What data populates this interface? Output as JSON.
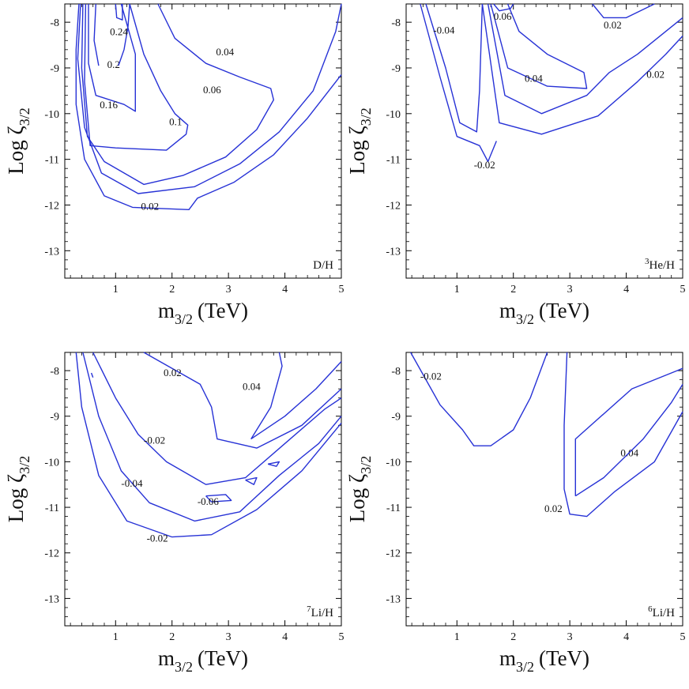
{
  "chart_data": [
    {
      "type": "contour",
      "panel_label": "D/H",
      "xlabel": "m",
      "xlabel_sub": "3/2",
      "xlabel_unit": "(TeV)",
      "ylabel": "Log ζ",
      "ylabel_sub": "3/2",
      "xlim": [
        0.1,
        5
      ],
      "ylim": [
        -13.6,
        -7.6
      ],
      "x_ticks": [
        1,
        2,
        3,
        4,
        5
      ],
      "y_ticks": [
        -8,
        -9,
        -10,
        -11,
        -12,
        -13
      ],
      "contours": [
        {
          "level": "0.02",
          "label_at": [
            1.45,
            -12.1
          ],
          "points": [
            [
              0.35,
              -7.6
            ],
            [
              0.3,
              -8.6
            ],
            [
              0.3,
              -9.8
            ],
            [
              0.45,
              -11
            ],
            [
              0.8,
              -11.8
            ],
            [
              1.3,
              -12.05
            ],
            [
              2.3,
              -12.1
            ],
            [
              2.45,
              -11.85
            ],
            [
              3.1,
              -11.5
            ],
            [
              3.8,
              -10.9
            ],
            [
              4.4,
              -10.1
            ],
            [
              5,
              -9.15
            ]
          ]
        },
        {
          "level": "0.04",
          "label_at": [
            2.78,
            -8.72
          ],
          "points": [
            [
              0.38,
              -7.6
            ],
            [
              0.33,
              -8.8
            ],
            [
              0.45,
              -10.3
            ],
            [
              0.75,
              -11.3
            ],
            [
              1.4,
              -11.75
            ],
            [
              2.4,
              -11.6
            ],
            [
              3.2,
              -11.1
            ],
            [
              3.9,
              -10.4
            ],
            [
              4.5,
              -9.5
            ],
            [
              4.9,
              -8.2
            ],
            [
              5,
              -7.6
            ]
          ]
        },
        {
          "level": "0.06",
          "label_at": [
            2.55,
            -9.55
          ],
          "points": [
            [
              0.42,
              -7.6
            ],
            [
              0.4,
              -9
            ],
            [
              0.5,
              -10.5
            ],
            [
              0.8,
              -11.05
            ],
            [
              1.5,
              -11.55
            ],
            [
              2.2,
              -11.35
            ],
            [
              2.95,
              -10.95
            ],
            [
              3.5,
              -10.35
            ],
            [
              3.8,
              -9.7
            ],
            [
              3.75,
              -9.45
            ],
            [
              3.2,
              -9.2
            ],
            [
              2.6,
              -8.9
            ],
            [
              2.05,
              -8.35
            ],
            [
              1.75,
              -7.6
            ]
          ]
        },
        {
          "level": "0.1",
          "label_at": [
            1.95,
            -10.25
          ],
          "points": [
            [
              0.47,
              -7.6
            ],
            [
              0.45,
              -9.3
            ],
            [
              0.55,
              -10.7
            ],
            [
              1.0,
              -10.75
            ],
            [
              1.9,
              -10.8
            ],
            [
              2.25,
              -10.45
            ],
            [
              2.28,
              -10.25
            ],
            [
              2.05,
              -10.0
            ],
            [
              1.8,
              -9.5
            ],
            [
              1.5,
              -8.7
            ],
            [
              1.25,
              -7.6
            ]
          ]
        },
        {
          "level": "0.16",
          "label_at": [
            0.72,
            -9.88
          ],
          "points": [
            [
              0.52,
              -7.6
            ],
            [
              0.52,
              -8.9
            ],
            [
              0.65,
              -9.6
            ],
            [
              1.15,
              -9.8
            ],
            [
              1.35,
              -9.95
            ],
            [
              1.35,
              -8.7
            ],
            [
              1.1,
              -7.6
            ]
          ]
        },
        {
          "level": "0.2",
          "label_at": [
            0.85,
            -9.0
          ],
          "points": [
            [
              0.65,
              -7.6
            ],
            [
              0.62,
              -8.4
            ],
            [
              0.7,
              -8.95
            ]
          ]
        },
        {
          "level": "0.2",
          "label_at": null,
          "points": [
            [
              1.05,
              -8.95
            ],
            [
              1.15,
              -8.6
            ],
            [
              1.22,
              -8.1
            ],
            [
              1.25,
              -7.6
            ]
          ]
        },
        {
          "level": "0.24",
          "label_at": [
            0.9,
            -8.28
          ],
          "points": [
            [
              1.0,
              -7.6
            ],
            [
              1.02,
              -7.9
            ],
            [
              1.12,
              -7.95
            ],
            [
              1.12,
              -7.6
            ]
          ]
        }
      ]
    },
    {
      "type": "contour",
      "panel_label": "He/H",
      "panel_label_sup": "3",
      "xlabel": "m",
      "xlabel_sub": "3/2",
      "xlabel_unit": "(TeV)",
      "ylabel": "Log ζ",
      "ylabel_sub": "3/2",
      "xlim": [
        0.1,
        5
      ],
      "ylim": [
        -13.6,
        -7.6
      ],
      "x_ticks": [
        1,
        2,
        3,
        4,
        5
      ],
      "y_ticks": [
        -8,
        -9,
        -10,
        -11,
        -12,
        -13
      ],
      "contours": [
        {
          "level": "-0.02",
          "label_at": [
            1.3,
            -11.2
          ],
          "points": [
            [
              0.35,
              -7.6
            ],
            [
              0.7,
              -9.2
            ],
            [
              1.0,
              -10.5
            ],
            [
              1.4,
              -10.7
            ],
            [
              1.55,
              -11.05
            ],
            [
              1.7,
              -10.6
            ]
          ]
        },
        {
          "level": "-0.04",
          "label_at": [
            0.58,
            -8.25
          ],
          "points": [
            [
              0.45,
              -7.6
            ],
            [
              0.8,
              -9.0
            ],
            [
              1.05,
              -10.2
            ],
            [
              1.35,
              -10.4
            ],
            [
              1.4,
              -9.5
            ],
            [
              1.45,
              -7.6
            ]
          ]
        },
        {
          "level": "-0.02",
          "label_at": null,
          "points": [
            [
              1.45,
              -7.6
            ],
            [
              1.75,
              -10.2
            ],
            [
              2.5,
              -10.45
            ],
            [
              3.5,
              -10.05
            ],
            [
              4.2,
              -9.3
            ],
            [
              4.7,
              -8.7
            ],
            [
              5,
              -8.3
            ]
          ]
        },
        {
          "level": "0.02",
          "label_at": [
            4.36,
            -9.22
          ],
          "points": [
            [
              1.55,
              -7.6
            ],
            [
              1.85,
              -9.6
            ],
            [
              2.5,
              -10.0
            ],
            [
              3.3,
              -9.6
            ],
            [
              3.7,
              -9.1
            ],
            [
              4.2,
              -8.7
            ],
            [
              5,
              -7.9
            ]
          ]
        },
        {
          "level": "0.04",
          "label_at": [
            2.2,
            -9.3
          ],
          "points": [
            [
              1.6,
              -7.6
            ],
            [
              1.9,
              -9.0
            ],
            [
              2.6,
              -9.4
            ],
            [
              3.3,
              -9.45
            ],
            [
              3.25,
              -9.1
            ],
            [
              2.6,
              -8.7
            ],
            [
              2.1,
              -8.2
            ],
            [
              1.9,
              -7.6
            ]
          ]
        },
        {
          "level": "0.06",
          "label_at": [
            1.65,
            -7.95
          ],
          "points": [
            [
              1.65,
              -7.6
            ],
            [
              1.75,
              -7.75
            ],
            [
              1.95,
              -7.7
            ],
            [
              2.0,
              -7.6
            ]
          ]
        },
        {
          "level": "0.02",
          "label_at": [
            3.6,
            -8.14
          ],
          "points": [
            [
              3.4,
              -7.6
            ],
            [
              3.6,
              -7.9
            ],
            [
              4.0,
              -7.9
            ],
            [
              4.5,
              -7.6
            ]
          ]
        }
      ]
    },
    {
      "type": "contour",
      "panel_label": "Li/H",
      "panel_label_sup": "7",
      "xlabel": "m",
      "xlabel_sub": "3/2",
      "xlabel_unit": "(TeV)",
      "ylabel": "Log ζ",
      "ylabel_sub": "3/2",
      "xlim": [
        0.1,
        5
      ],
      "ylim": [
        -13.6,
        -7.6
      ],
      "x_ticks": [
        1,
        2,
        3,
        4,
        5
      ],
      "y_ticks": [
        -8,
        -9,
        -10,
        -11,
        -12,
        -13
      ],
      "contours": [
        {
          "level": "-0.02",
          "label_at": [
            1.55,
            -11.75
          ],
          "points": [
            [
              0.3,
              -7.6
            ],
            [
              0.4,
              -8.8
            ],
            [
              0.7,
              -10.3
            ],
            [
              1.2,
              -11.3
            ],
            [
              2.0,
              -11.65
            ],
            [
              2.7,
              -11.6
            ],
            [
              3.5,
              -11.05
            ],
            [
              4.3,
              -10.2
            ],
            [
              5,
              -9.15
            ]
          ]
        },
        {
          "level": "-0.04",
          "label_at": [
            1.1,
            -10.55
          ],
          "points": [
            [
              0.42,
              -7.6
            ],
            [
              0.7,
              -9.0
            ],
            [
              1.1,
              -10.2
            ],
            [
              1.6,
              -10.9
            ],
            [
              2.4,
              -11.3
            ],
            [
              3.2,
              -11.1
            ],
            [
              3.9,
              -10.3
            ],
            [
              4.6,
              -9.6
            ],
            [
              5,
              -9.0
            ]
          ]
        },
        {
          "level": "-0.02",
          "label_at": [
            1.5,
            -9.6
          ],
          "points": [
            [
              0.6,
              -7.6
            ],
            [
              1.0,
              -8.6
            ],
            [
              1.4,
              -9.4
            ],
            [
              1.9,
              -10.0
            ],
            [
              2.6,
              -10.5
            ],
            [
              3.3,
              -10.35
            ],
            [
              4.0,
              -9.6
            ],
            [
              4.7,
              -8.85
            ],
            [
              5,
              -8.6
            ]
          ]
        },
        {
          "level": "-0.06",
          "label_at": [
            2.45,
            -10.95
          ],
          "points": [
            [
              2.6,
              -10.75
            ],
            [
              2.95,
              -10.72
            ],
            [
              3.05,
              -10.85
            ],
            [
              2.7,
              -10.88
            ],
            [
              2.6,
              -10.75
            ]
          ]
        },
        {
          "level": "",
          "label_at": null,
          "points": [
            [
              3.3,
              -10.4
            ],
            [
              3.5,
              -10.35
            ],
            [
              3.45,
              -10.5
            ],
            [
              3.3,
              -10.4
            ]
          ]
        },
        {
          "level": "",
          "label_at": null,
          "points": [
            [
              3.7,
              -10.05
            ],
            [
              3.9,
              -10.0
            ],
            [
              3.85,
              -10.1
            ],
            [
              3.7,
              -10.05
            ]
          ]
        },
        {
          "level": "0.02",
          "label_at": [
            1.85,
            -8.12
          ],
          "points": [
            [
              1.5,
              -7.6
            ],
            [
              2.5,
              -8.3
            ],
            [
              2.7,
              -8.8
            ],
            [
              2.8,
              -9.5
            ],
            [
              3.5,
              -9.7
            ],
            [
              4.3,
              -9.2
            ],
            [
              5,
              -8.4
            ]
          ]
        },
        {
          "level": "0.04",
          "label_at": [
            3.25,
            -8.42
          ],
          "points": [
            [
              3.4,
              -9.5
            ],
            [
              3.75,
              -8.8
            ],
            [
              3.95,
              -7.9
            ],
            [
              3.9,
              -7.6
            ]
          ]
        },
        {
          "level": "",
          "label_at": null,
          "points": [
            [
              3.4,
              -9.5
            ],
            [
              4.0,
              -9.0
            ],
            [
              4.55,
              -8.4
            ],
            [
              5,
              -7.8
            ]
          ]
        },
        {
          "level": "",
          "label_at": null,
          "points": [
            [
              0.57,
              -8.05
            ],
            [
              0.6,
              -8.15
            ]
          ]
        }
      ]
    },
    {
      "type": "contour",
      "panel_label": "Li/H",
      "panel_label_sup": "6",
      "xlabel": "m",
      "xlabel_sub": "3/2",
      "xlabel_unit": "(TeV)",
      "ylabel": "Log ζ",
      "ylabel_sub": "3/2",
      "xlim": [
        0.1,
        5
      ],
      "ylim": [
        -13.6,
        -7.6
      ],
      "x_ticks": [
        1,
        2,
        3,
        4,
        5
      ],
      "y_ticks": [
        -8,
        -9,
        -10,
        -11,
        -12,
        -13
      ],
      "contours": [
        {
          "level": "-0.02",
          "label_at": [
            0.35,
            -8.2
          ],
          "points": [
            [
              0.18,
              -7.6
            ],
            [
              0.7,
              -8.75
            ],
            [
              1.1,
              -9.3
            ],
            [
              1.3,
              -9.65
            ],
            [
              1.6,
              -9.65
            ],
            [
              2.0,
              -9.3
            ],
            [
              2.3,
              -8.6
            ],
            [
              2.6,
              -7.6
            ]
          ]
        },
        {
          "level": "0.02",
          "label_at": [
            2.55,
            -11.1
          ],
          "points": [
            [
              2.95,
              -7.6
            ],
            [
              2.9,
              -9.2
            ],
            [
              2.9,
              -10.6
            ],
            [
              3.0,
              -11.15
            ],
            [
              3.3,
              -11.2
            ],
            [
              3.8,
              -10.65
            ],
            [
              4.5,
              -10.0
            ],
            [
              5,
              -8.9
            ]
          ]
        },
        {
          "level": "0.04",
          "label_at": [
            3.9,
            -9.88
          ],
          "points": [
            [
              3.1,
              -10.75
            ],
            [
              3.1,
              -9.5
            ],
            [
              4.1,
              -8.4
            ],
            [
              4.9,
              -8.0
            ],
            [
              5,
              -7.95
            ]
          ]
        },
        {
          "level": "0.04",
          "label_at": null,
          "points": [
            [
              3.1,
              -10.75
            ],
            [
              3.6,
              -10.35
            ],
            [
              4.3,
              -9.5
            ],
            [
              4.8,
              -8.7
            ],
            [
              5,
              -8.3
            ]
          ]
        }
      ]
    }
  ]
}
